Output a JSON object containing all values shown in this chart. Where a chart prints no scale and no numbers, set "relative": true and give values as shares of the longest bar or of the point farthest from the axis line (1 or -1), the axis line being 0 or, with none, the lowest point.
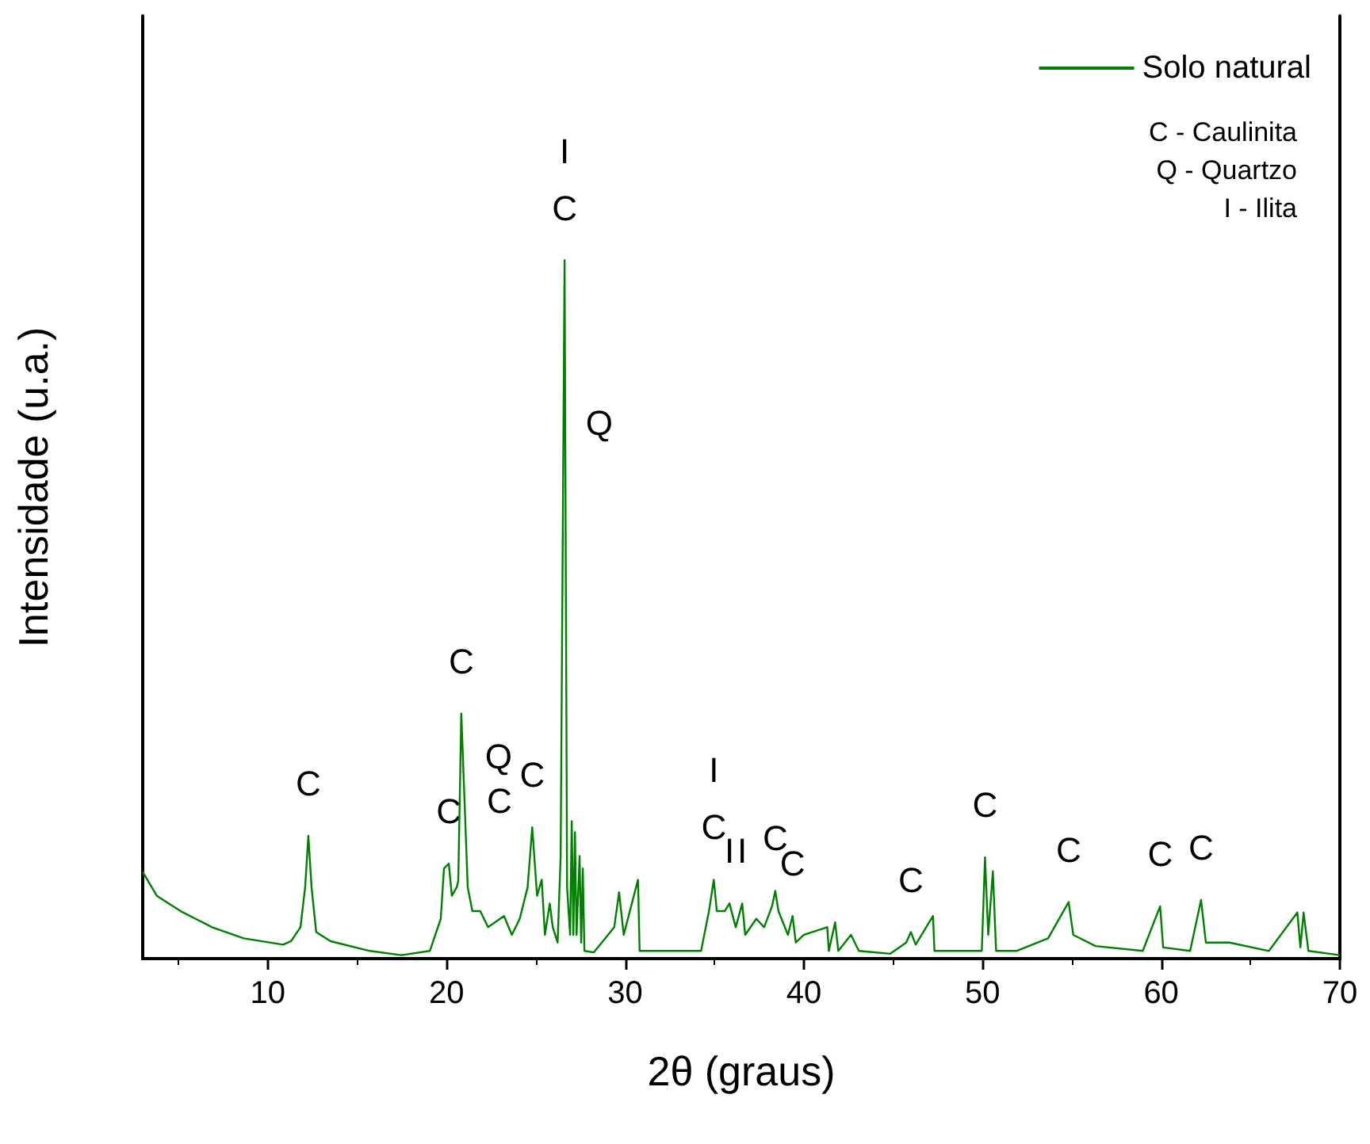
{
  "chart_data": {
    "type": "line",
    "relative": true,
    "xlabel": "2θ (graus)",
    "ylabel": "Intensidade (u.a.)",
    "xlim": [
      3,
      70
    ],
    "xticks": [
      10,
      20,
      30,
      40,
      50,
      60,
      70
    ],
    "legend": "top right",
    "grid": false,
    "x": [
      3.0,
      3.79,
      5.12,
      6.88,
      8.65,
      10.86,
      11.3,
      11.83,
      12.09,
      12.27,
      12.45,
      12.71,
      13.51,
      15.71,
      17.48,
      19.07,
      19.68,
      19.86,
      20.13,
      20.3,
      20.57,
      20.66,
      20.83,
      21.01,
      21.19,
      21.45,
      21.89,
      22.33,
      23.22,
      23.66,
      24.1,
      24.54,
      24.8,
      25.07,
      25.33,
      25.51,
      25.78,
      25.95,
      26.22,
      26.39,
      26.61,
      26.75,
      26.92,
      27.01,
      27.1,
      27.19,
      27.28,
      27.45,
      27.54,
      27.63,
      27.72,
      28.25,
      29.39,
      29.66,
      29.92,
      30.72,
      30.81,
      32.48,
      34.25,
      34.69,
      34.96,
      35.13,
      35.57,
      35.84,
      36.19,
      36.55,
      36.72,
      37.34,
      37.78,
      38.22,
      38.4,
      38.58,
      39.11,
      39.37,
      39.55,
      39.99,
      41.31,
      41.4,
      41.75,
      41.93,
      42.64,
      43.08,
      44.84,
      45.73,
      45.99,
      46.26,
      47.23,
      47.31,
      49.26,
      49.96,
      50.14,
      50.32,
      50.58,
      50.76,
      51.9,
      53.67,
      54.82,
      55.08,
      56.32,
      58.97,
      59.94,
      60.11,
      61.62,
      62.23,
      62.5,
      63.82,
      66.03,
      67.62,
      67.79,
      67.97,
      68.24,
      70.0
    ],
    "series": [
      {
        "name": "Solo natural",
        "color": "#008000",
        "values": [
          0.124,
          0.09,
          0.068,
          0.045,
          0.029,
          0.02,
          0.025,
          0.045,
          0.102,
          0.176,
          0.102,
          0.038,
          0.025,
          0.011,
          0.005,
          0.011,
          0.057,
          0.129,
          0.136,
          0.09,
          0.102,
          0.111,
          0.351,
          0.226,
          0.102,
          0.068,
          0.068,
          0.045,
          0.061,
          0.034,
          0.057,
          0.102,
          0.188,
          0.09,
          0.113,
          0.034,
          0.079,
          0.045,
          0.023,
          0.147,
          1,
          0.102,
          0.034,
          0.197,
          0.034,
          0.181,
          0.034,
          0.147,
          0.023,
          0.129,
          0.011,
          0.009,
          0.045,
          0.095,
          0.034,
          0.113,
          0.011,
          0.011,
          0.011,
          0.068,
          0.113,
          0.068,
          0.068,
          0.079,
          0.045,
          0.079,
          0.034,
          0.057,
          0.045,
          0.075,
          0.097,
          0.068,
          0.034,
          0.061,
          0.023,
          0.034,
          0.045,
          0.011,
          0.052,
          0.011,
          0.034,
          0.011,
          0.007,
          0.023,
          0.038,
          0.02,
          0.061,
          0.011,
          0.011,
          0.011,
          0.145,
          0.034,
          0.125,
          0.011,
          0.011,
          0.029,
          0.081,
          0.034,
          0.018,
          0.011,
          0.075,
          0.016,
          0.011,
          0.084,
          0.023,
          0.023,
          0.011,
          0.066,
          0.016,
          0.066,
          0.011,
          0.005
        ]
      }
    ],
    "annotations": [
      {
        "text": "C",
        "x": 12.27,
        "y": 0.176
      },
      {
        "text": "C",
        "x": 20.13,
        "y": 0.136
      },
      {
        "text": "C",
        "x": 20.83,
        "y": 0.351
      },
      {
        "text": "Q",
        "x": 20.92,
        "y": 0.289
      },
      {
        "text": "C",
        "x": 21.01,
        "y": 0.226
      },
      {
        "text": "C",
        "x": 24.8,
        "y": 0.188
      },
      {
        "text": "C",
        "x": 26.61,
        "y": 1
      },
      {
        "text": "I",
        "x": 26.61,
        "y": 1
      },
      {
        "text": "Q",
        "x": 26.55,
        "y": 0.767
      },
      {
        "text": "C",
        "x": 34.96,
        "y": 0.113
      },
      {
        "text": "I",
        "x": 34.96,
        "y": 0.113
      },
      {
        "text": "I",
        "x": 35.84,
        "y": 0.079
      },
      {
        "text": "I",
        "x": 36.55,
        "y": 0.079
      },
      {
        "text": "C",
        "x": 38.4,
        "y": 0.097
      },
      {
        "text": "C",
        "x": 39.37,
        "y": 0.061
      },
      {
        "text": "C",
        "x": 45.99,
        "y": 0.038
      },
      {
        "text": "C",
        "x": 50.14,
        "y": 0.145
      },
      {
        "text": "C",
        "x": 54.82,
        "y": 0.081
      },
      {
        "text": "C",
        "x": 59.94,
        "y": 0.075
      },
      {
        "text": "C",
        "x": 62.23,
        "y": 0.084
      },
      "C - Caulinita",
      "Q - Quartzo",
      "I - Ilita"
    ]
  }
}
